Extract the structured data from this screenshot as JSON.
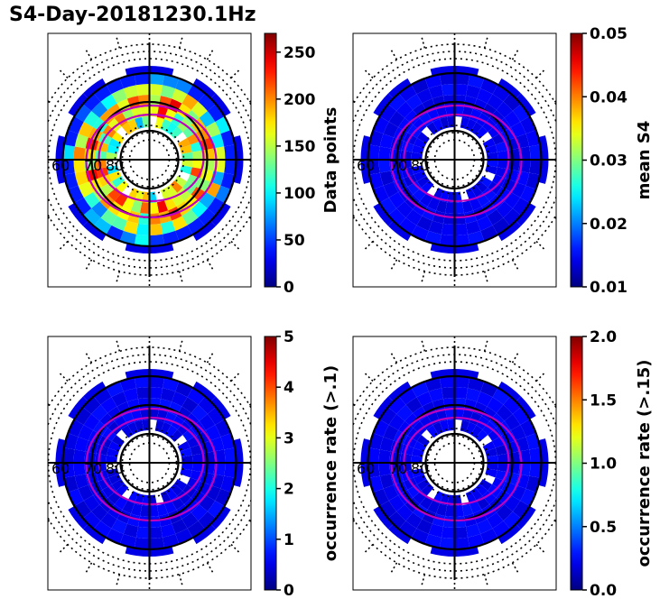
{
  "figure": {
    "title": "S4-Day-20181230.1Hz"
  },
  "chart_data": [
    {
      "type": "polar-heatmap",
      "panel": "top-left",
      "colorbar": {
        "label": "Data points",
        "range": [
          0,
          270
        ],
        "ticks": [
          "0",
          "50",
          "100",
          "150",
          "200",
          "250"
        ],
        "tick_values": [
          0,
          50,
          100,
          150,
          200,
          250
        ],
        "colormap": "jet"
      },
      "lat_labels": [
        "60",
        "70",
        "80"
      ],
      "description_values": {
        "typical_range": [
          40,
          260
        ]
      }
    },
    {
      "type": "polar-heatmap",
      "panel": "top-right",
      "colorbar": {
        "label": "mean S4",
        "range": [
          0.01,
          0.05
        ],
        "ticks": [
          "0.01",
          "0.02",
          "0.03",
          "0.04",
          "0.05"
        ],
        "tick_values": [
          0.01,
          0.02,
          0.03,
          0.04,
          0.05
        ],
        "colormap": "jet"
      },
      "lat_labels": [
        "60",
        "70",
        "80"
      ]
    },
    {
      "type": "polar-heatmap",
      "panel": "bottom-left",
      "colorbar": {
        "label": "occurrence rate (>.1)",
        "range": [
          0,
          5
        ],
        "ticks": [
          "0",
          "1",
          "2",
          "3",
          "4",
          "5"
        ],
        "tick_values": [
          0,
          1,
          2,
          3,
          4,
          5
        ],
        "colormap": "jet"
      },
      "lat_labels": [
        "60",
        "70",
        "80"
      ]
    },
    {
      "type": "polar-heatmap",
      "panel": "bottom-right",
      "colorbar": {
        "label": "occurrence rate (>.15)",
        "range": [
          0,
          2
        ],
        "ticks": [
          "0.0",
          "0.5",
          "1.0",
          "1.5",
          "2.0"
        ],
        "tick_values": [
          0.0,
          0.5,
          1.0,
          1.5,
          2.0
        ],
        "colormap": "jet"
      },
      "lat_labels": [
        "60",
        "70",
        "80"
      ]
    }
  ]
}
